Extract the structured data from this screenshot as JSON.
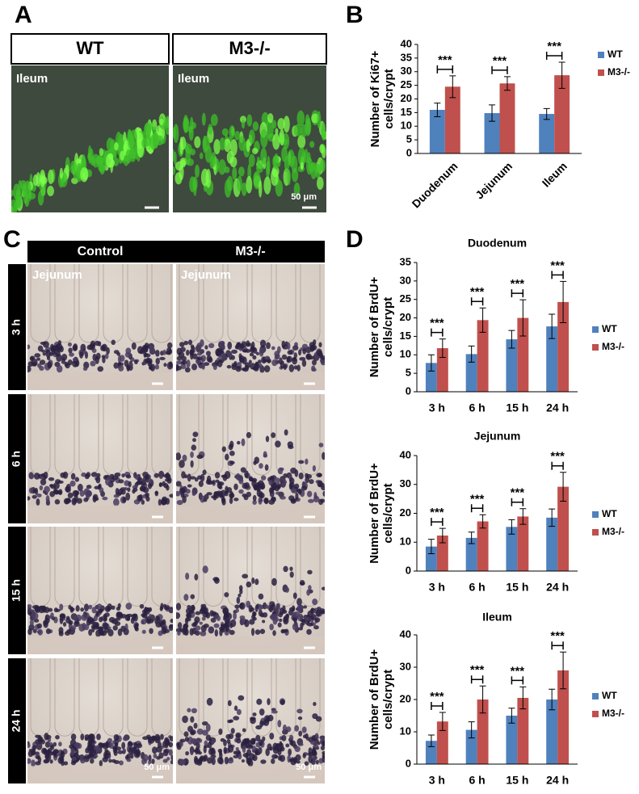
{
  "panel_labels": [
    "A",
    "B",
    "C",
    "D"
  ],
  "panel_a": {
    "columns": [
      "WT",
      "M3-/-"
    ],
    "tissue": [
      "Ileum",
      "Ileum"
    ],
    "scale_bar": "50 μm"
  },
  "panel_c": {
    "columns": [
      "Control",
      "M3-/-"
    ],
    "rows": [
      "3 h",
      "6 h",
      "15 h",
      "24 h"
    ],
    "tissue": [
      "Jejunum",
      "Jejunum"
    ],
    "scale_bar": "50 μm"
  },
  "chart_data": [
    {
      "type": "bar",
      "y_label": [
        "Number of Ki67+",
        "cells/crypt"
      ],
      "categories": [
        "Duodenum",
        "Jejunum",
        "Ileum"
      ],
      "series": [
        {
          "name": "WT",
          "color": "#4f81bd",
          "values": [
            16,
            14.8,
            14.5
          ],
          "errors": [
            2.5,
            3,
            2
          ]
        },
        {
          "name": "M3-/-",
          "color": "#c0504d",
          "values": [
            24.5,
            25.7,
            28.7
          ],
          "errors": [
            4,
            2.5,
            4.8
          ]
        }
      ],
      "significance": [
        "***",
        "***",
        "***"
      ],
      "ylim": [
        0,
        40
      ],
      "yticks": [
        0,
        5,
        10,
        15,
        20,
        25,
        30,
        35,
        40
      ],
      "legend": "right"
    },
    {
      "type": "bar",
      "title": "Duodenum",
      "y_label": [
        "Number of BrdU+",
        "cells/crypt"
      ],
      "categories": [
        "3 h",
        "6 h",
        "15 h",
        "24 h"
      ],
      "series": [
        {
          "name": "WT",
          "color": "#4f81bd",
          "values": [
            7.8,
            10.2,
            14.2,
            17.7
          ],
          "errors": [
            2.2,
            2.2,
            2.4,
            3.3
          ]
        },
        {
          "name": "M3-/-",
          "color": "#c0504d",
          "values": [
            11.8,
            19.4,
            20,
            24.3
          ],
          "errors": [
            2.5,
            3.3,
            4.9,
            5.6
          ]
        }
      ],
      "significance": [
        "***",
        "***",
        "***",
        "***"
      ],
      "ylim": [
        0,
        35
      ],
      "yticks": [
        0,
        5,
        10,
        15,
        20,
        25,
        30,
        35
      ],
      "legend": "right"
    },
    {
      "type": "bar",
      "title": "Jejunum",
      "y_label": [
        "Number of BrdU+",
        "cells/crypt"
      ],
      "categories": [
        "3 h",
        "6 h",
        "15 h",
        "24 h"
      ],
      "series": [
        {
          "name": "WT",
          "color": "#4f81bd",
          "values": [
            8.5,
            11.5,
            15.3,
            18.5
          ],
          "errors": [
            2.5,
            2,
            2.5,
            3
          ]
        },
        {
          "name": "M3-/-",
          "color": "#c0504d",
          "values": [
            12.3,
            17.2,
            18.9,
            29.2
          ],
          "errors": [
            2.5,
            2.3,
            2.7,
            5
          ]
        }
      ],
      "significance": [
        "***",
        "***",
        "***",
        "***"
      ],
      "ylim": [
        0,
        40
      ],
      "yticks": [
        0,
        10,
        20,
        30,
        40
      ],
      "legend": "right"
    },
    {
      "type": "bar",
      "title": "Ileum",
      "y_label": [
        "Number of BrdU+",
        "cells/crypt"
      ],
      "categories": [
        "3 h",
        "6 h",
        "15 h",
        "24 h"
      ],
      "series": [
        {
          "name": "WT",
          "color": "#4f81bd",
          "values": [
            7.2,
            10.6,
            15,
            20
          ],
          "errors": [
            1.8,
            2.5,
            2.3,
            3.2
          ]
        },
        {
          "name": "M3-/-",
          "color": "#c0504d",
          "values": [
            13.2,
            20,
            20.5,
            29
          ],
          "errors": [
            2.8,
            4.2,
            3.4,
            5.7
          ]
        }
      ],
      "significance": [
        "***",
        "***",
        "***",
        "***"
      ],
      "ylim": [
        0,
        40
      ],
      "yticks": [
        0,
        10,
        20,
        30,
        40
      ],
      "legend": "right"
    }
  ]
}
